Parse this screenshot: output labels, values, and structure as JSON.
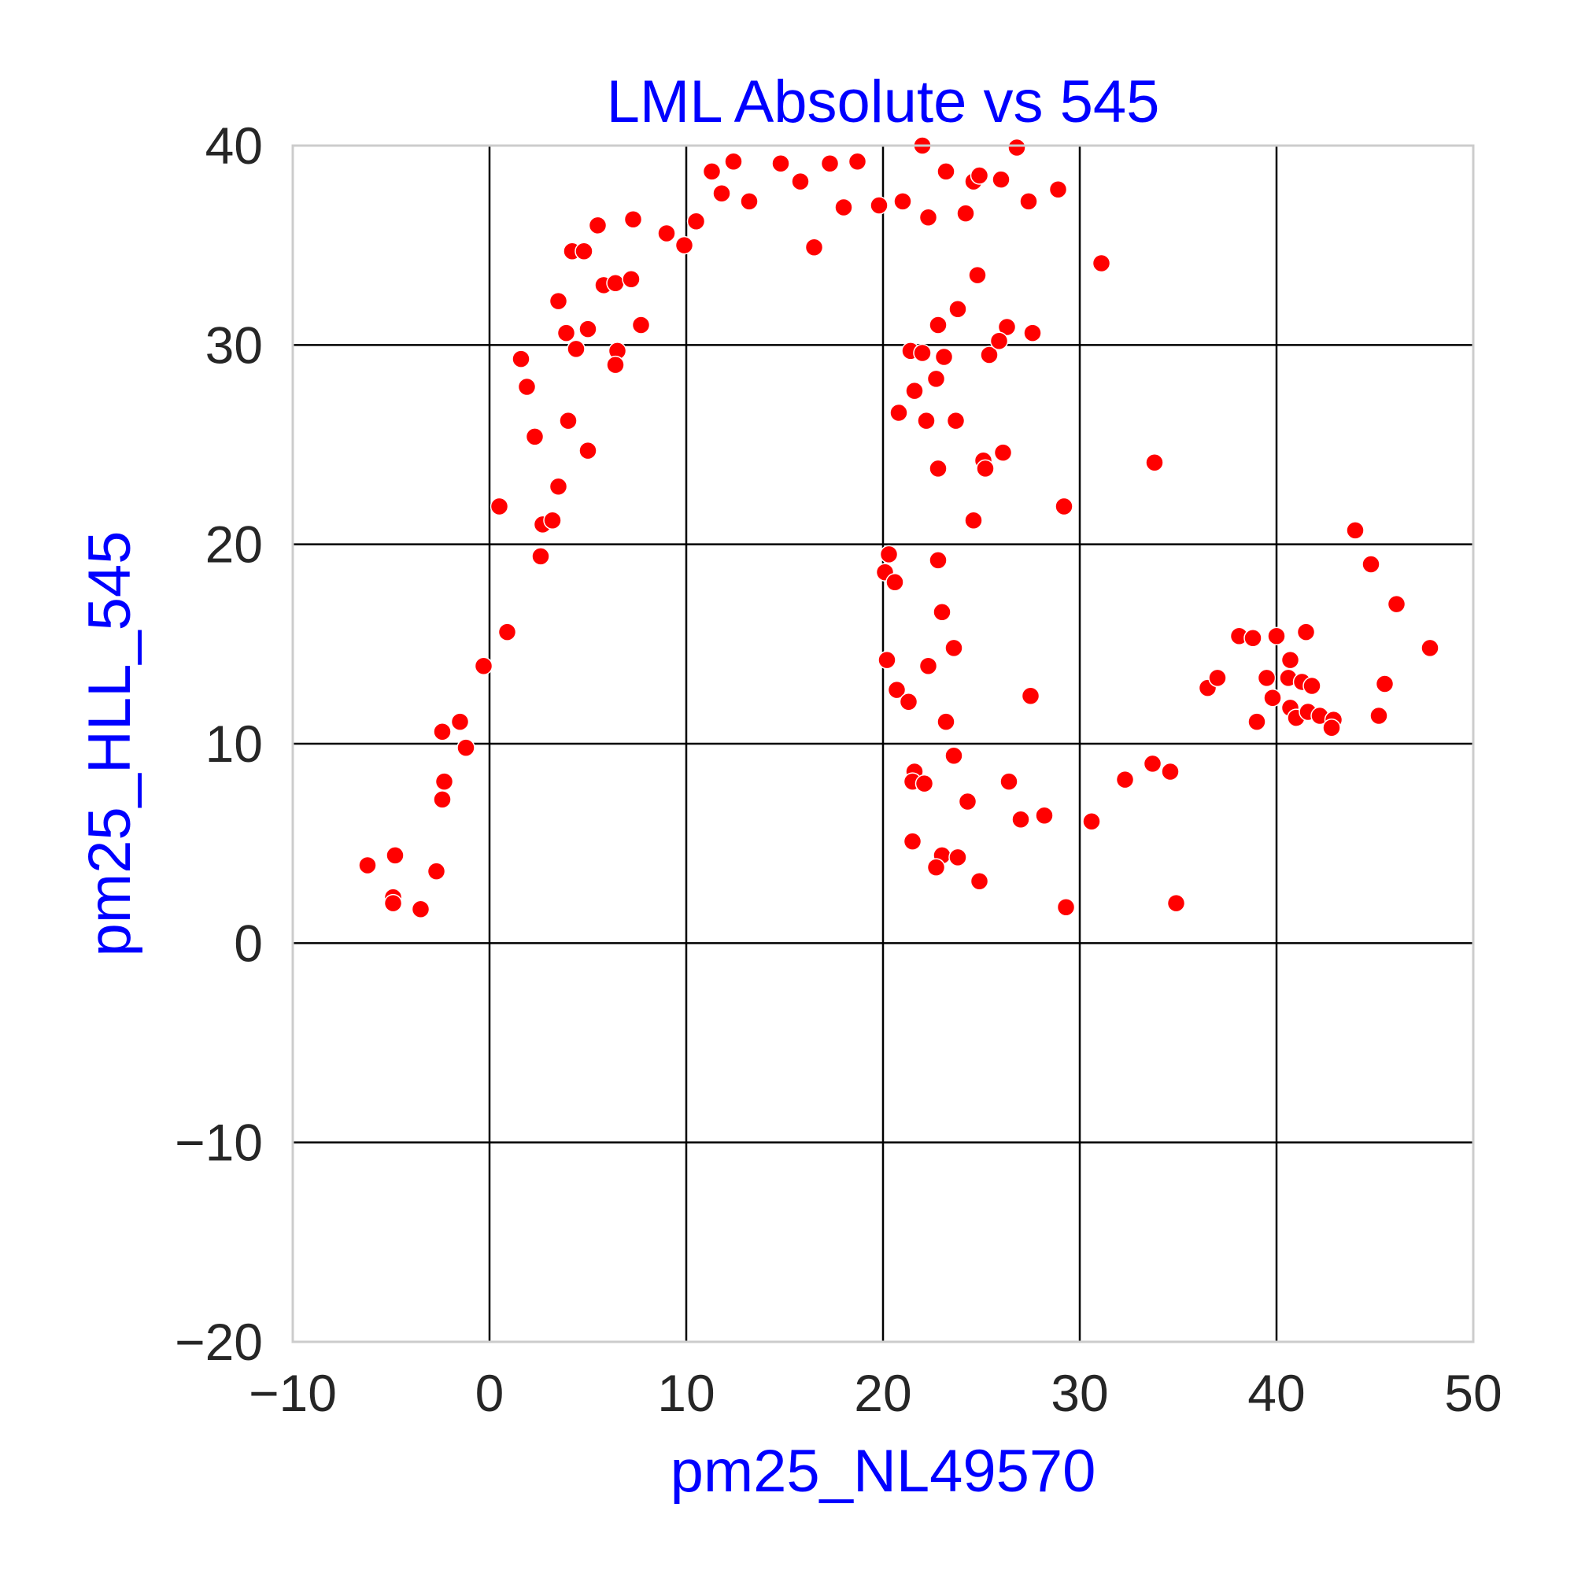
{
  "chart_data": {
    "type": "scatter",
    "title": "LML Absolute vs 545",
    "xlabel": "pm25_NL49570",
    "ylabel": "pm25_HLL_545",
    "xlim": [
      -10,
      50
    ],
    "ylim": [
      -20,
      40
    ],
    "xticks": [
      "−10",
      "0",
      "10",
      "20",
      "30",
      "40",
      "50"
    ],
    "yticks": [
      "−20",
      "−10",
      "0",
      "10",
      "20",
      "30",
      "40"
    ],
    "grid": true,
    "colors": {
      "marker": "#ff0000",
      "marker_edge": "#ffffff",
      "label": "#0000ff",
      "grid": "#000000",
      "frame": "#cccccc",
      "tick": "#262626"
    },
    "points": [
      [
        -6.2,
        3.9
      ],
      [
        -4.9,
        2.3
      ],
      [
        -4.8,
        4.4
      ],
      [
        -4.9,
        2.0
      ],
      [
        -3.5,
        1.7
      ],
      [
        -2.7,
        3.6
      ],
      [
        -2.4,
        10.6
      ],
      [
        -2.3,
        8.1
      ],
      [
        -2.4,
        7.2
      ],
      [
        -1.5,
        11.1
      ],
      [
        -1.2,
        9.8
      ],
      [
        -0.3,
        13.9
      ],
      [
        0.5,
        21.9
      ],
      [
        0.9,
        15.6
      ],
      [
        1.6,
        29.3
      ],
      [
        1.9,
        27.9
      ],
      [
        2.3,
        25.4
      ],
      [
        2.6,
        19.4
      ],
      [
        2.7,
        21.0
      ],
      [
        3.2,
        21.2
      ],
      [
        3.5,
        22.9
      ],
      [
        3.5,
        32.2
      ],
      [
        3.9,
        30.6
      ],
      [
        4.0,
        26.2
      ],
      [
        4.2,
        34.7
      ],
      [
        4.4,
        29.8
      ],
      [
        4.8,
        34.7
      ],
      [
        5.0,
        24.7
      ],
      [
        5.0,
        30.8
      ],
      [
        5.5,
        36.0
      ],
      [
        5.8,
        33.0
      ],
      [
        6.5,
        29.7
      ],
      [
        6.4,
        29.0
      ],
      [
        6.4,
        33.1
      ],
      [
        7.2,
        33.3
      ],
      [
        7.3,
        36.3
      ],
      [
        7.7,
        31.0
      ],
      [
        9.0,
        35.6
      ],
      [
        9.9,
        35.0
      ],
      [
        10.5,
        36.2
      ],
      [
        11.3,
        38.7
      ],
      [
        11.8,
        37.6
      ],
      [
        12.4,
        39.2
      ],
      [
        13.2,
        37.2
      ],
      [
        14.8,
        39.1
      ],
      [
        15.8,
        38.2
      ],
      [
        16.5,
        34.9
      ],
      [
        17.3,
        39.1
      ],
      [
        18.0,
        36.9
      ],
      [
        18.7,
        39.2
      ],
      [
        19.8,
        37.0
      ],
      [
        21.0,
        37.2
      ],
      [
        22.0,
        40.0
      ],
      [
        23.2,
        38.7
      ],
      [
        24.6,
        38.2
      ],
      [
        24.9,
        38.5
      ],
      [
        26.0,
        38.3
      ],
      [
        26.8,
        39.9
      ],
      [
        27.4,
        37.2
      ],
      [
        28.9,
        37.8
      ],
      [
        31.1,
        34.1
      ],
      [
        22.3,
        36.4
      ],
      [
        24.2,
        36.6
      ],
      [
        24.8,
        33.5
      ],
      [
        23.8,
        31.8
      ],
      [
        26.3,
        30.9
      ],
      [
        27.6,
        30.6
      ],
      [
        25.4,
        29.5
      ],
      [
        25.9,
        30.2
      ],
      [
        22.8,
        31.0
      ],
      [
        21.4,
        29.7
      ],
      [
        23.1,
        29.4
      ],
      [
        22.0,
        29.6
      ],
      [
        21.6,
        27.7
      ],
      [
        22.7,
        28.3
      ],
      [
        20.8,
        26.6
      ],
      [
        22.2,
        26.2
      ],
      [
        23.7,
        26.2
      ],
      [
        26.1,
        24.6
      ],
      [
        25.1,
        24.2
      ],
      [
        25.2,
        23.8
      ],
      [
        22.8,
        23.8
      ],
      [
        24.6,
        21.2
      ],
      [
        29.2,
        21.9
      ],
      [
        33.8,
        24.1
      ],
      [
        20.3,
        19.5
      ],
      [
        20.1,
        18.6
      ],
      [
        20.6,
        18.1
      ],
      [
        22.8,
        19.2
      ],
      [
        23.0,
        16.6
      ],
      [
        20.2,
        14.2
      ],
      [
        22.3,
        13.9
      ],
      [
        23.6,
        14.8
      ],
      [
        20.7,
        12.7
      ],
      [
        21.3,
        12.1
      ],
      [
        23.2,
        11.1
      ],
      [
        27.5,
        12.4
      ],
      [
        21.6,
        8.6
      ],
      [
        21.5,
        8.1
      ],
      [
        22.1,
        8.0
      ],
      [
        23.6,
        9.4
      ],
      [
        24.3,
        7.1
      ],
      [
        26.4,
        8.1
      ],
      [
        27.0,
        6.2
      ],
      [
        28.2,
        6.4
      ],
      [
        30.6,
        6.1
      ],
      [
        32.3,
        8.2
      ],
      [
        33.7,
        9.0
      ],
      [
        34.6,
        8.6
      ],
      [
        21.5,
        5.1
      ],
      [
        23.0,
        4.4
      ],
      [
        23.8,
        4.3
      ],
      [
        22.7,
        3.8
      ],
      [
        24.9,
        3.1
      ],
      [
        29.3,
        1.8
      ],
      [
        34.9,
        2.0
      ],
      [
        36.5,
        12.8
      ],
      [
        37.0,
        13.3
      ],
      [
        38.1,
        15.4
      ],
      [
        38.8,
        15.3
      ],
      [
        39.0,
        11.1
      ],
      [
        39.5,
        13.3
      ],
      [
        39.8,
        12.3
      ],
      [
        40.0,
        15.4
      ],
      [
        40.6,
        13.3
      ],
      [
        40.7,
        11.8
      ],
      [
        41.0,
        11.3
      ],
      [
        41.3,
        13.1
      ],
      [
        41.5,
        15.6
      ],
      [
        41.6,
        11.6
      ],
      [
        41.8,
        12.9
      ],
      [
        42.2,
        11.4
      ],
      [
        42.9,
        11.2
      ],
      [
        42.8,
        10.8
      ],
      [
        40.7,
        14.2
      ],
      [
        44.0,
        20.7
      ],
      [
        44.8,
        19.0
      ],
      [
        45.2,
        11.4
      ],
      [
        45.5,
        13.0
      ],
      [
        46.1,
        17.0
      ],
      [
        47.8,
        14.8
      ]
    ]
  }
}
